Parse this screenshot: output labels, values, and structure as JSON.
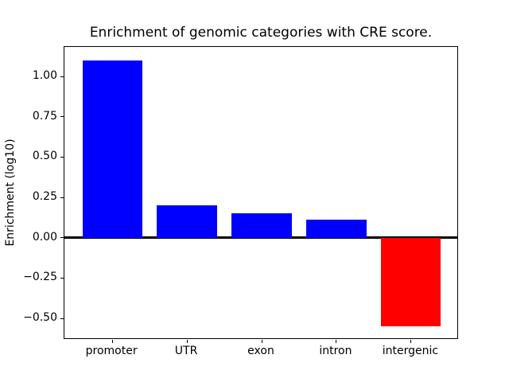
{
  "chart_data": {
    "type": "bar",
    "title": "Enrichment of genomic categories with CRE score.",
    "xlabel": "",
    "ylabel": "Enrichment (log10)",
    "categories": [
      "promoter",
      "UTR",
      "exon",
      "intron",
      "intergenic"
    ],
    "values": [
      1.1,
      0.2,
      0.15,
      0.11,
      -0.55
    ],
    "bar_colors": [
      "#0000ff",
      "#0000ff",
      "#0000ff",
      "#0000ff",
      "#ff0000"
    ],
    "positive_color": "#0000ff",
    "negative_color": "#ff0000",
    "bar_width_fraction": 0.8,
    "ylim": [
      -0.6325,
      1.1825
    ],
    "yticks": [
      {
        "value": 1.0,
        "label": "1.00"
      },
      {
        "value": 0.75,
        "label": "0.75"
      },
      {
        "value": 0.5,
        "label": "0.50"
      },
      {
        "value": 0.25,
        "label": "0.25"
      },
      {
        "value": 0.0,
        "label": "0.00"
      },
      {
        "value": -0.25,
        "label": "−0.25"
      },
      {
        "value": -0.5,
        "label": "−0.50"
      }
    ],
    "zero_line": {
      "value": 0.0,
      "color": "#000000"
    },
    "grid": false,
    "legend": null,
    "axis_color": "#000000",
    "background_color": "#ffffff"
  }
}
